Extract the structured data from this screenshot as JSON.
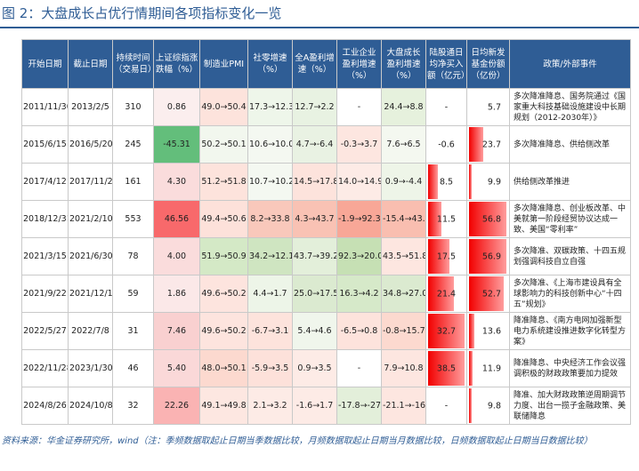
{
  "title": "图 2：大盘成长占优行情期间各项指标变化一览",
  "headers": [
    "开始日期",
    "截止日期",
    "持续时间（交易日）",
    "上证综指涨跌幅（%）",
    "制造业PMI",
    "社零增速（%）",
    "全A盈利增速（%）",
    "工业企业盈利增速（%）",
    "大盘成长盈利增速（%）",
    "陆股通日均净买入额（亿元）",
    "日均新发基金份额（亿份）",
    "政策/外部事件"
  ],
  "rows": [
    {
      "start": "2011/11/30",
      "end": "2013/2/5",
      "days": "310",
      "sh": "0.86",
      "pmi": "49.0→50.4",
      "retail": "17.3→12.3",
      "alla": "12.7→2.2",
      "ind": "-",
      "large": "24.4→8.8",
      "north": "-",
      "fund": "5.7",
      "fund_pct": 0.02,
      "north_pct": 0,
      "events": "多次降准降息、国务院通过《国家重大科技基础设施建设中长期规划（2012-2030年）》",
      "colors": {
        "sh": "#fbeeee",
        "pmi": "#fde3dc",
        "retail": "#eef6ea",
        "alla": "#e8f2e2",
        "ind": "#ffffff",
        "large": "#e6f1dd"
      }
    },
    {
      "start": "2015/6/15",
      "end": "2016/5/20",
      "days": "245",
      "sh": "-45.31",
      "pmi": "50.2→50.1",
      "retail": "10.6→10.0",
      "alla": "4.7→-6.4",
      "ind": "-0.3→3.7",
      "large": "7.6→6.5",
      "north": "-0.6",
      "fund": "23.7",
      "fund_pct": 0.4,
      "north_pct": 0,
      "events": "多次降准降息、供给侧改革",
      "colors": {
        "sh": "#63be7b",
        "pmi": "#f2f7ee",
        "retail": "#f4f8f1",
        "alla": "#e9f2e3",
        "ind": "#fde6e0",
        "large": "#f4f8f0"
      }
    },
    {
      "start": "2017/4/12",
      "end": "2017/11/22",
      "days": "161",
      "sh": "4.30",
      "pmi": "51.2→51.8",
      "retail": "10.7→10.2",
      "alla": "14.5→17.8",
      "ind": "14.0→14.9",
      "large": "0.9→-4.4",
      "north": "8.5",
      "fund": "9.9",
      "fund_pct": 0.1,
      "north_pct": 0.3,
      "events": "供给侧改革推进",
      "colors": {
        "sh": "#fadcdc",
        "pmi": "#fde3dc",
        "retail": "#f4f8f1",
        "alla": "#fde3dc",
        "ind": "#fdebe6",
        "large": "#eef5e8"
      }
    },
    {
      "start": "2018/12/31",
      "end": "2021/2/10",
      "days": "553",
      "sh": "46.56",
      "pmi": "49.4→50.6",
      "retail": "8.2→33.8",
      "alla": "4.3→43.7",
      "ind": "-1.9→92.3",
      "large": "-15.4→43.5",
      "north": "11.5",
      "fund": "56.8",
      "fund_pct": 0.98,
      "north_pct": 0.4,
      "events": "多次降准降息、创业板改革、中美就第一阶段经贸协议达成一致、美国“零利率”",
      "colors": {
        "sh": "#f8696b",
        "pmi": "#fde1da",
        "retail": "#f9c8bb",
        "alla": "#f9c2b4",
        "ind": "#f8a797",
        "large": "#f9beb0"
      }
    },
    {
      "start": "2021/3/15",
      "end": "2021/6/30",
      "days": "78",
      "sh": "4.00",
      "pmi": "51.9→50.9",
      "retail": "34.2→12.1",
      "alla": "43.7→39.2",
      "ind": "92.3→20.0",
      "large": "43.5→51.8",
      "north": "17.5",
      "fund": "56.9",
      "fund_pct": 0.98,
      "north_pct": 0.6,
      "events": "多次降准、双碳政策、十四五规划强调科技自立自强",
      "colors": {
        "sh": "#fadcdc",
        "pmi": "#d4e9c6",
        "retail": "#cfe5c1",
        "alla": "#e3efda",
        "ind": "#c6e0b4",
        "large": "#fde6e0"
      }
    },
    {
      "start": "2021/9/22",
      "end": "2021/12/13",
      "days": "59",
      "sh": "1.86",
      "pmi": "49.6→50.2",
      "retail": "4.4→1.7",
      "alla": "25.0→17.5",
      "ind": "16.3→4.2",
      "large": "34.8→27.0",
      "north": "21.4",
      "fund": "52.7",
      "fund_pct": 0.9,
      "north_pct": 0.73,
      "events": "多次降准、《上海市建设具有全球影响力的科技创新中心“十四五”规划》",
      "colors": {
        "sh": "#fbe8e8",
        "pmi": "#fde4de",
        "retail": "#edf5e8",
        "alla": "#dbead0",
        "ind": "#d6e9c9",
        "large": "#dbead0"
      }
    },
    {
      "start": "2022/5/27",
      "end": "2022/7/8",
      "days": "31",
      "sh": "7.46",
      "pmi": "49.6→50.2",
      "retail": "-6.7→3.1",
      "alla": "5.4→4.6",
      "ind": "-6.5→0.8",
      "large": "-0.8→15.7",
      "north": "32.7",
      "fund": "13.6",
      "fund_pct": 0.18,
      "north_pct": 1.0,
      "events": "降准降息、《南方电网加强新型电力系统建设推进数字化转型方案》",
      "colors": {
        "sh": "#f9d0d0",
        "pmi": "#fde4de",
        "retail": "#fde3dc",
        "alla": "#f0f6ec",
        "ind": "#fde3dc",
        "large": "#fcd9cf"
      }
    },
    {
      "start": "2022/11/28",
      "end": "2023/1/30",
      "days": "46",
      "sh": "5.40",
      "pmi": "48.0→50.1",
      "retail": "-5.9→3.5",
      "alla": "0.9→3.5",
      "ind": "-",
      "large": "7.9→10.8",
      "north": "38.5",
      "fund": "11.9",
      "fund_pct": 0.14,
      "north_pct": 1.0,
      "events": "降准降息、中央经济工作会议强调积极的财政政策要加力提效",
      "colors": {
        "sh": "#fad8d8",
        "pmi": "#fcd9cf",
        "retail": "#fde1da",
        "alla": "#fdebe6",
        "ind": "#ffffff",
        "large": "#fde6e0"
      }
    },
    {
      "start": "2024/8/26",
      "end": "2024/10/8",
      "days": "32",
      "sh": "22.26",
      "pmi": "49.1→49.8",
      "retail": "2.1→3.2",
      "alla": "-1.6→1.7",
      "ind": "-17.8→-27.1",
      "large": "-21.1→-16.0",
      "north": "-",
      "fund": "9.8",
      "fund_pct": 0.1,
      "north_pct": 0,
      "events": "降准、加大财政政策逆周期调节力度、出台一揽子金融政策、美联储降息",
      "colors": {
        "sh": "#fab3b3",
        "pmi": "#fde7e1",
        "retail": "#fdebe6",
        "alla": "#fdebe6",
        "ind": "#e3efda",
        "large": "#fde6e0"
      }
    }
  ],
  "footer": "资料来源：华金证券研究所，wind（注：季频数据取起止日期当季数据比较，月频数据取起止日期当月数据比较，日频数据取起止日期当日数据比较）"
}
